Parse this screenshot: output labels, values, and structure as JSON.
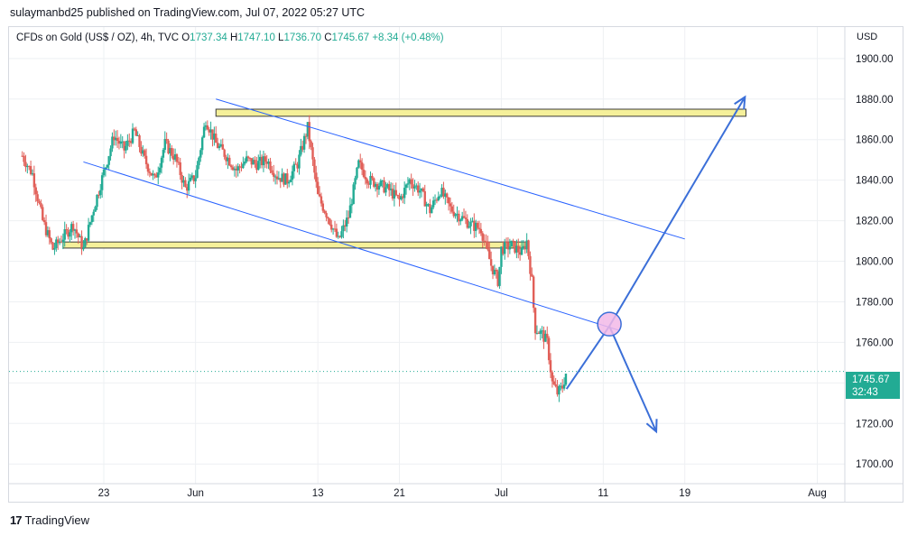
{
  "header": {
    "published_by": "sulaymanbd25 published on TradingView.com, Jul 07, 2022 05:27 UTC"
  },
  "symbol": {
    "name": "CFDs on Gold (US$ / OZ), 4h, TVC",
    "open_label": "O",
    "open": "1737.34",
    "high_label": "H",
    "high": "1747.10",
    "low_label": "L",
    "low": "1736.70",
    "close_label": "C",
    "close": "1745.67",
    "change": "+8.34 (+0.48%)"
  },
  "price_axis": {
    "currency": "USD",
    "last_price": "1745.67",
    "countdown": "32:43"
  },
  "footer": {
    "logo_glyph": "17",
    "brand": "TradingView"
  },
  "colors": {
    "up": "#22ab94",
    "down": "#e15f58",
    "trendline": "#2962ff",
    "zone_fill": "#f5f09a",
    "zone_border": "#3a3a3a",
    "marker_fill": "#f2b8e8",
    "grid": "#eef0f3"
  },
  "chart_data": {
    "type": "candlestick",
    "title": "CFDs on Gold (US$ / OZ), 4h, TVC",
    "x_ticks": [
      {
        "label": "23",
        "day": 23
      },
      {
        "label": "Jun",
        "day": 32
      },
      {
        "label": "13",
        "day": 44
      },
      {
        "label": "21",
        "day": 52
      },
      {
        "label": "Jul",
        "day": 62
      },
      {
        "label": "11",
        "day": 72
      },
      {
        "label": "19",
        "day": 80
      },
      {
        "label": "Aug",
        "day": 93
      }
    ],
    "x_range_days": [
      13.7,
      95.7
    ],
    "y_ticks": [
      1700,
      1720,
      1740,
      1760,
      1780,
      1800,
      1820,
      1840,
      1860,
      1880,
      1900
    ],
    "ylim": [
      1690.3,
      1915.5
    ],
    "grid": true,
    "close_path": [
      [
        15.0,
        1852
      ],
      [
        16.0,
        1843
      ],
      [
        17.0,
        1820
      ],
      [
        18.0,
        1806
      ],
      [
        19.0,
        1812
      ],
      [
        20.0,
        1818
      ],
      [
        21.0,
        1806
      ],
      [
        22.0,
        1826
      ],
      [
        23.0,
        1844
      ],
      [
        24.0,
        1862
      ],
      [
        25.0,
        1855
      ],
      [
        26.0,
        1864
      ],
      [
        27.0,
        1850
      ],
      [
        28.0,
        1840
      ],
      [
        29.0,
        1858
      ],
      [
        30.0,
        1851
      ],
      [
        31.0,
        1836
      ],
      [
        32.0,
        1842
      ],
      [
        33.0,
        1870
      ],
      [
        34.0,
        1858
      ],
      [
        35.0,
        1852
      ],
      [
        36.0,
        1845
      ],
      [
        37.0,
        1850
      ],
      [
        38.0,
        1848
      ],
      [
        39.0,
        1850
      ],
      [
        40.0,
        1842
      ],
      [
        41.0,
        1840
      ],
      [
        42.0,
        1848
      ],
      [
        43.0,
        1866
      ],
      [
        44.0,
        1832
      ],
      [
        45.0,
        1822
      ],
      [
        46.0,
        1810
      ],
      [
        47.0,
        1822
      ],
      [
        48.0,
        1848
      ],
      [
        49.0,
        1840
      ],
      [
        50.0,
        1838
      ],
      [
        51.0,
        1835
      ],
      [
        52.0,
        1830
      ],
      [
        53.0,
        1840
      ],
      [
        54.0,
        1835
      ],
      [
        55.0,
        1825
      ],
      [
        56.0,
        1835
      ],
      [
        57.0,
        1826
      ],
      [
        58.0,
        1822
      ],
      [
        59.0,
        1818
      ],
      [
        60.0,
        1816
      ],
      [
        61.0,
        1798
      ],
      [
        61.7,
        1790
      ],
      [
        62.0,
        1806
      ],
      [
        63.0,
        1808
      ],
      [
        64.0,
        1804
      ],
      [
        64.5,
        1810
      ],
      [
        65.0,
        1790
      ],
      [
        65.3,
        1767
      ],
      [
        66.0,
        1764
      ],
      [
        66.5,
        1760
      ],
      [
        67.0,
        1740
      ],
      [
        67.5,
        1735
      ],
      [
        68.0,
        1738
      ],
      [
        68.4,
        1746
      ]
    ],
    "horizontal_zones": [
      {
        "from_day": 19.0,
        "to_day": 64.5,
        "y_low": 1806.5,
        "y_high": 1809.5
      },
      {
        "from_day": 34.0,
        "to_day": 86.0,
        "y_low": 1871.5,
        "y_high": 1875.0
      }
    ],
    "trend_lines": [
      {
        "from": [
          34.0,
          1880
        ],
        "to": [
          80.0,
          1811
        ]
      },
      {
        "from": [
          21.0,
          1849
        ],
        "to": [
          73.5,
          1766
        ]
      }
    ],
    "projection": [
      {
        "from": [
          68.4,
          1737
        ],
        "to": [
          72.6,
          1768
        ],
        "arrow": false
      },
      {
        "from": [
          72.6,
          1768
        ],
        "to": [
          85.9,
          1881
        ],
        "arrow": true
      },
      {
        "from": [
          72.6,
          1768
        ],
        "to": [
          77.2,
          1716
        ],
        "arrow": true
      }
    ],
    "marker_circle": {
      "day": 72.6,
      "price": 1769
    }
  }
}
